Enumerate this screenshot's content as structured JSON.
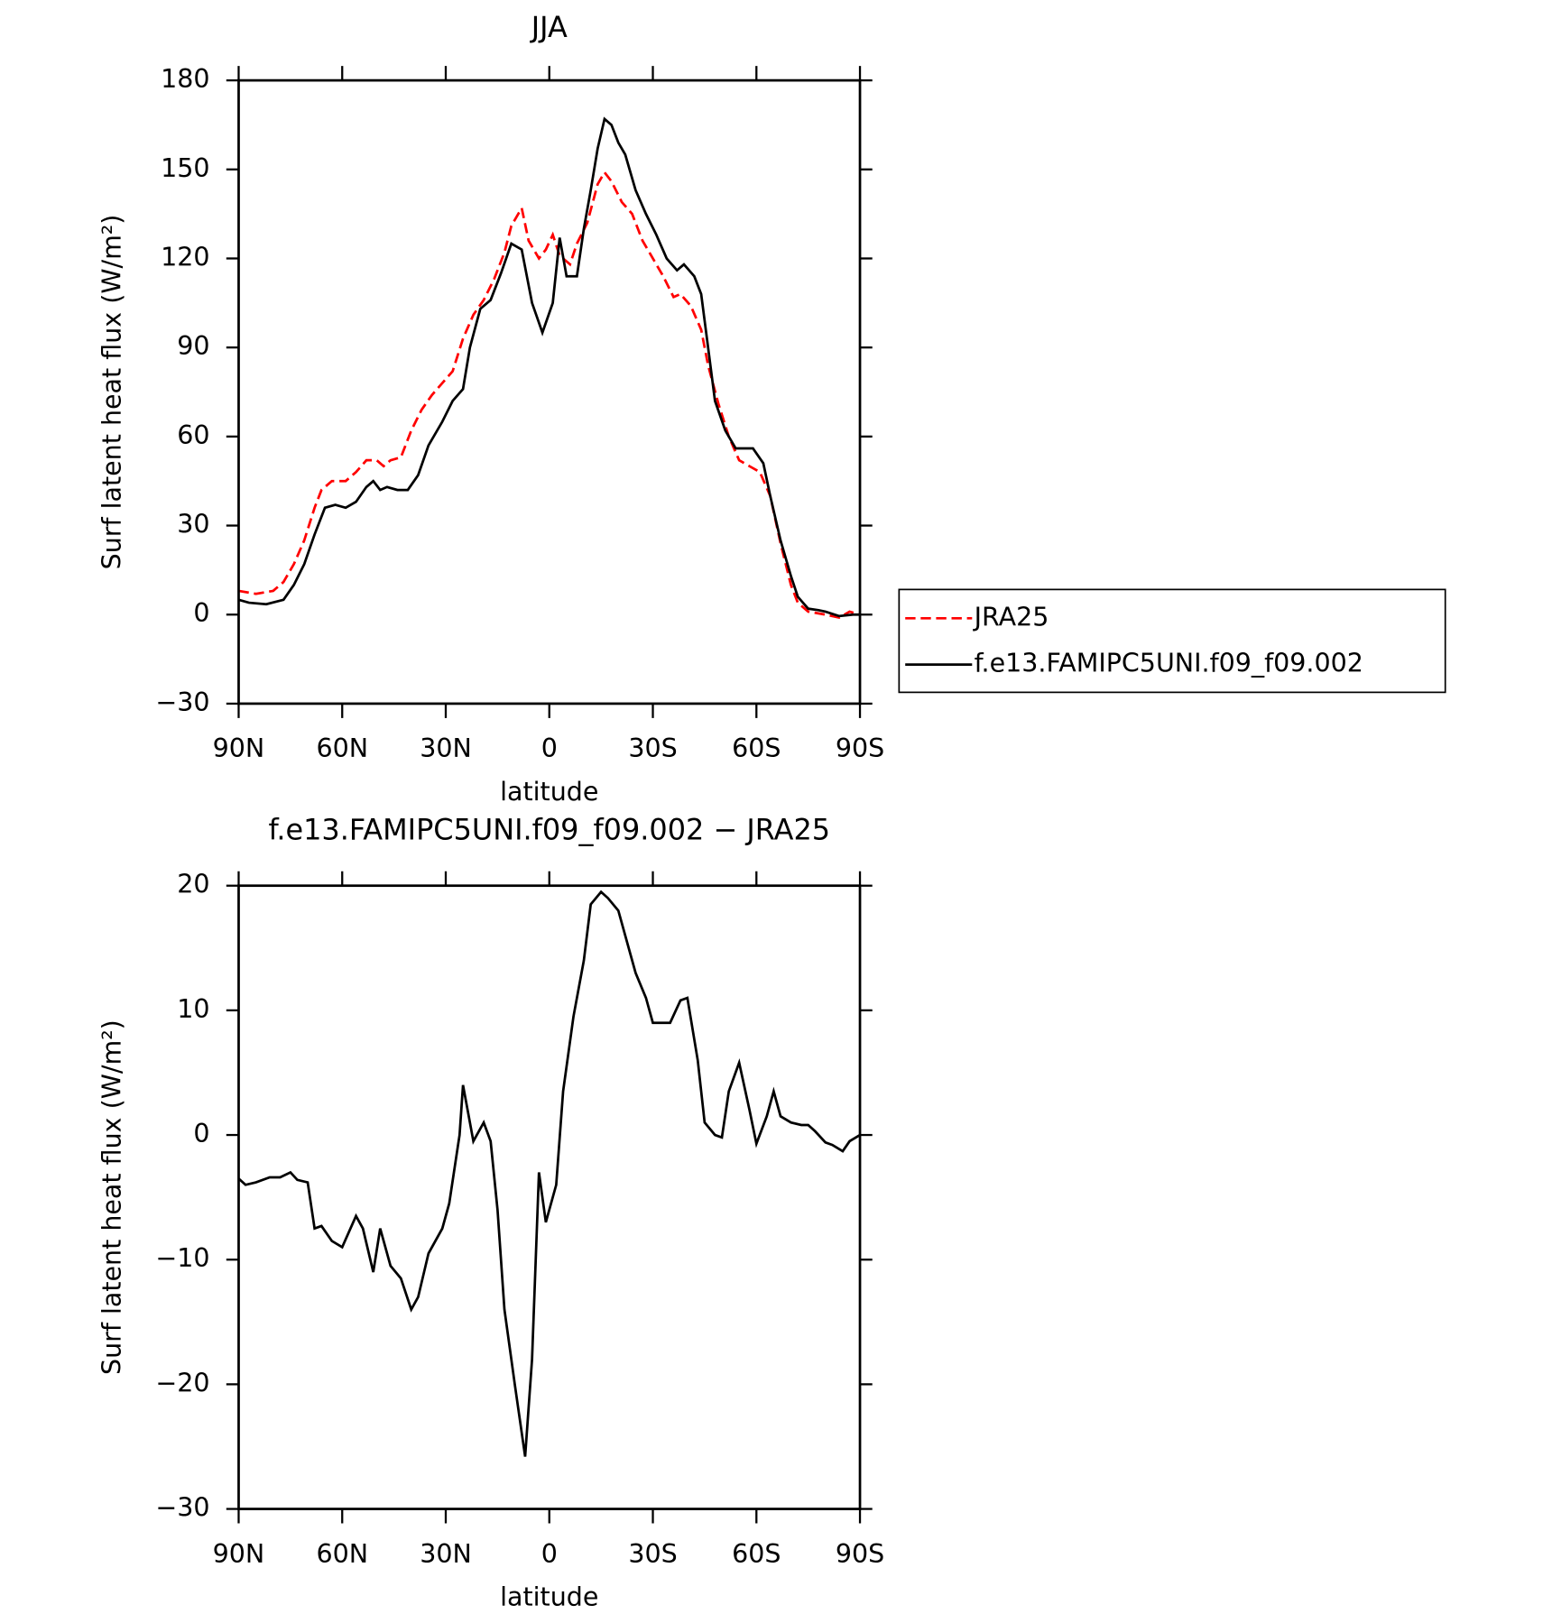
{
  "chart_data": [
    {
      "type": "line",
      "title": "JJA",
      "xlabel": "latitude",
      "ylabel": "Surf latent heat flux (W/m²)",
      "xlim": [
        90,
        -90
      ],
      "xticks": [
        {
          "value": 90,
          "label": "90N"
        },
        {
          "value": 60,
          "label": "60N"
        },
        {
          "value": 30,
          "label": "30N"
        },
        0,
        {
          "value": -30,
          "label": "30S"
        },
        {
          "value": -60,
          "label": "60S"
        },
        {
          "value": -90,
          "label": "90S"
        }
      ],
      "ylim": [
        -30,
        180
      ],
      "yticks": [
        {
          "value": -30,
          "label": "−30"
        },
        0,
        30,
        60,
        90,
        120,
        150,
        180
      ],
      "legend": "right",
      "series": [
        {
          "name": "JRA25",
          "color": "#ff0000",
          "dashed": true,
          "x": [
            90,
            85,
            80,
            77,
            74,
            71,
            68,
            66,
            63,
            59,
            56,
            53,
            50,
            48,
            46,
            43,
            40,
            37,
            34,
            31,
            28,
            25,
            22,
            19,
            16,
            13,
            11,
            8,
            6,
            3,
            1,
            -1,
            -3,
            -6,
            -8,
            -11,
            -14,
            -16,
            -18,
            -21,
            -24,
            -27,
            -30,
            -33,
            -36,
            -38,
            -41,
            -44,
            -46,
            -49,
            -52,
            -55,
            -58,
            -61,
            -64,
            -67,
            -70,
            -72,
            -75,
            -80,
            -84,
            -87,
            -90
          ],
          "values": [
            8,
            7,
            8,
            11,
            17,
            25,
            36,
            42,
            45,
            45,
            48,
            52,
            52,
            50,
            52,
            53,
            62,
            69,
            74,
            78,
            82,
            93,
            101,
            106,
            113,
            122,
            131,
            137,
            126,
            120,
            123,
            128,
            121,
            118,
            125,
            132,
            145,
            149,
            146,
            139,
            135,
            126,
            120,
            114,
            107,
            108,
            104,
            96,
            84,
            71,
            60,
            52,
            50,
            48,
            40,
            24,
            10,
            4,
            1,
            0,
            -1,
            1,
            0
          ]
        },
        {
          "name": "f.e13.FAMIPC5UNI.f09_f09.002",
          "color": "#000000",
          "dashed": false,
          "x": [
            90,
            87,
            82,
            77,
            74,
            71,
            68,
            65,
            62,
            59,
            56,
            53,
            51,
            49,
            47,
            44,
            41,
            38,
            35,
            31,
            28,
            25,
            23,
            20,
            17,
            14,
            11,
            8,
            5,
            2,
            -1,
            -3,
            -5,
            -8,
            -10,
            -12,
            -14,
            -16,
            -18,
            -20,
            -22,
            -25,
            -28,
            -31,
            -34,
            -37,
            -39,
            -42,
            -44,
            -46,
            -48,
            -51,
            -54,
            -57,
            -59,
            -62,
            -64,
            -67,
            -70,
            -72,
            -75,
            -78,
            -80,
            -84,
            -88,
            -90
          ],
          "values": [
            5,
            4,
            3.5,
            5,
            10,
            17,
            27,
            36,
            37,
            36,
            38,
            43,
            45,
            42,
            43,
            42,
            42,
            47,
            57,
            65,
            72,
            76,
            90,
            103,
            106,
            115,
            125,
            123,
            105,
            95,
            105,
            127,
            114,
            114,
            130,
            143,
            157,
            167,
            165,
            159,
            155,
            143,
            135,
            128,
            120,
            116,
            118,
            114,
            108,
            90,
            72,
            62,
            56,
            56,
            56,
            51,
            40,
            25,
            13,
            6,
            2,
            1.5,
            1,
            -0.5,
            0,
            0
          ]
        }
      ]
    },
    {
      "type": "line",
      "title": "f.e13.FAMIPC5UNI.f09_f09.002 − JRA25",
      "xlabel": "latitude",
      "ylabel": "Surf latent heat flux (W/m²)",
      "xlim": [
        90,
        -90
      ],
      "xticks": [
        {
          "value": 90,
          "label": "90N"
        },
        {
          "value": 60,
          "label": "60N"
        },
        {
          "value": 30,
          "label": "30N"
        },
        0,
        {
          "value": -30,
          "label": "30S"
        },
        {
          "value": -60,
          "label": "60S"
        },
        {
          "value": -90,
          "label": "90S"
        }
      ],
      "ylim": [
        -30,
        20
      ],
      "yticks": [
        {
          "value": -30,
          "label": "−30"
        },
        {
          "value": -20,
          "label": "−20"
        },
        {
          "value": -10,
          "label": "−10"
        },
        0,
        10,
        20
      ],
      "series": [
        {
          "color": "#000000",
          "dashed": false,
          "x": [
            90,
            88,
            85,
            81,
            78,
            75,
            73,
            70,
            68,
            66,
            63,
            60,
            56,
            54,
            51,
            49,
            46,
            43,
            40,
            38,
            35,
            31,
            29,
            26,
            25,
            22,
            19,
            17,
            15,
            13,
            10,
            7,
            5,
            3,
            1,
            -2,
            -4,
            -7,
            -10,
            -12,
            -15,
            -17,
            -20,
            -22,
            -25,
            -28,
            -30,
            -33,
            -35,
            -38,
            -40,
            -43,
            -45,
            -48,
            -50,
            -52,
            -55,
            -58,
            -60,
            -63,
            -65,
            -67,
            -70,
            -73,
            -75,
            -77,
            -80,
            -82,
            -85,
            -87,
            -90
          ],
          "values": [
            -3.5,
            -4,
            -3.8,
            -3.4,
            -3.4,
            -3,
            -3.6,
            -3.8,
            -7.5,
            -7.3,
            -8.5,
            -9,
            -6.5,
            -7.5,
            -11,
            -7.5,
            -10.5,
            -11.5,
            -14,
            -13,
            -9.5,
            -7.5,
            -5.5,
            0,
            4,
            -0.5,
            1,
            -0.5,
            -6,
            -14,
            -20,
            -25.8,
            -18,
            -3,
            -7,
            -4,
            3.5,
            9.5,
            14,
            18.5,
            19.5,
            19,
            18,
            16,
            13,
            11,
            9,
            9,
            9,
            10.8,
            11,
            6,
            1,
            0,
            -0.2,
            3.5,
            5.8,
            2,
            -0.7,
            1.5,
            3.5,
            1.5,
            1,
            0.8,
            0.8,
            0.3,
            -0.6,
            -0.8,
            -1.3,
            -0.5,
            0
          ]
        }
      ]
    }
  ]
}
